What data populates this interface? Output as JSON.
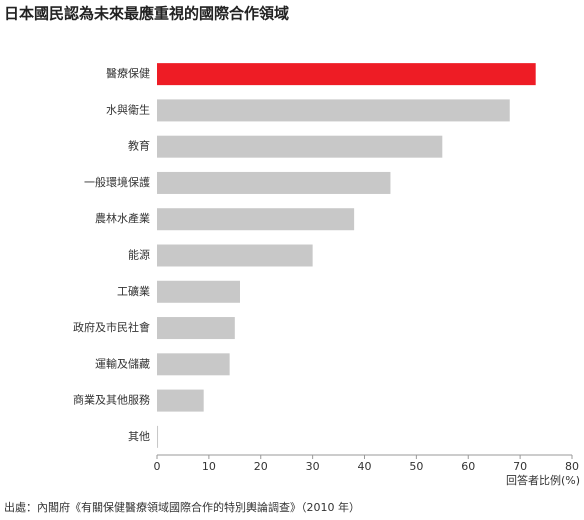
{
  "chart_data": {
    "type": "barh",
    "title": "日本國民認為未來最應重視的國際合作領域",
    "categories": [
      "醫療保健",
      "水與衛生",
      "教育",
      "一般環境保護",
      "農林水產業",
      "能源",
      "工礦業",
      "政府及市民社會",
      "運輸及儲藏",
      "商業及其他服務",
      "其他"
    ],
    "values": [
      73,
      68,
      55,
      45,
      38,
      30,
      16,
      15,
      14,
      9,
      0.2
    ],
    "colors": [
      "#ee1c25",
      "#c8c8c8",
      "#c8c8c8",
      "#c8c8c8",
      "#c8c8c8",
      "#c8c8c8",
      "#c8c8c8",
      "#c8c8c8",
      "#c8c8c8",
      "#c8c8c8",
      "#c8c8c8"
    ],
    "xlim": [
      0,
      80
    ],
    "xticks": [
      0,
      10,
      20,
      30,
      40,
      50,
      60,
      70,
      80
    ],
    "xlabel": "回答者比例(%)",
    "source": "出處：內閣府《有關保健醫療領域國際合作的特別輿論調查》（2010 年）"
  }
}
